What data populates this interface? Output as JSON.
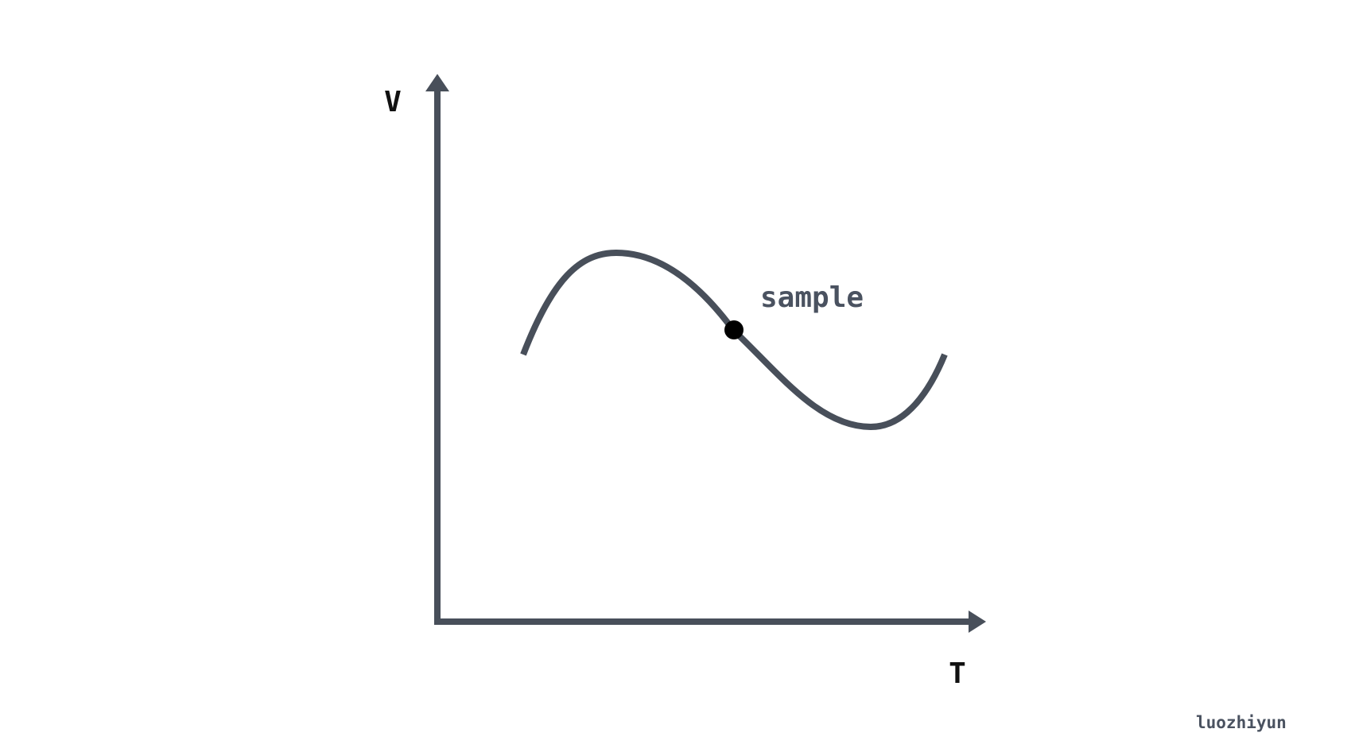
{
  "diagram": {
    "y_axis_label": "V",
    "x_axis_label": "T",
    "point_label": "sample",
    "watermark": "luozhiyun"
  },
  "colors": {
    "stroke": "#484f5a",
    "point": "#000000",
    "axis_label": "#111111",
    "annotation": "#4a5260",
    "watermark": "#4a5260",
    "background": "#ffffff"
  }
}
